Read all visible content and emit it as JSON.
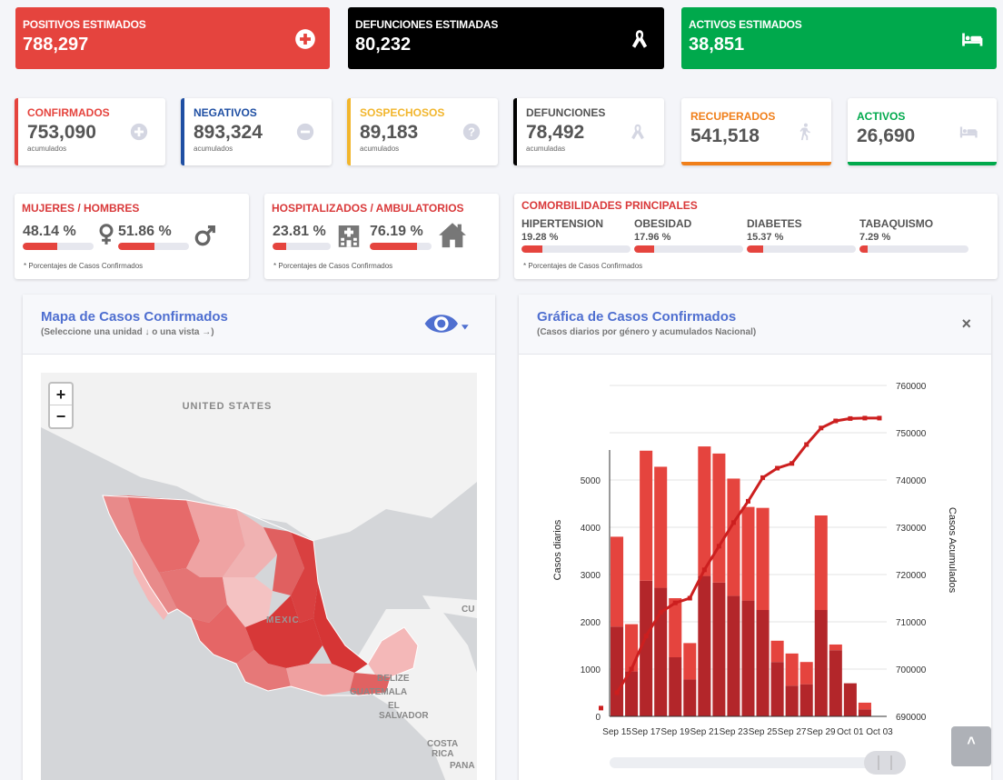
{
  "estimated": [
    {
      "label": "POSITIVOS ESTIMADOS",
      "value": "788,297",
      "color": "#e5443e",
      "icon": "plus-circle-icon"
    },
    {
      "label": "DEFUNCIONES ESTIMADAS",
      "value": "80,232",
      "color": "#000000",
      "icon": "ribbon-icon"
    },
    {
      "label": "ACTIVOS ESTIMADOS",
      "value": "38,851",
      "color": "#00a94c",
      "icon": "bed-icon"
    }
  ],
  "stats": [
    {
      "label": "CONFIRMADOS",
      "value": "753,090",
      "sub": "acumulados",
      "color": "#e5443e",
      "icon": "plus-circle-icon"
    },
    {
      "label": "NEGATIVOS",
      "value": "893,324",
      "sub": "acumulados",
      "color": "#1f4fa3",
      "icon": "minus-circle-icon"
    },
    {
      "label": "SOSPECHOSOS",
      "value": "89,183",
      "sub": "acumulados",
      "color": "#f2b62d",
      "icon": "question-circle-icon"
    },
    {
      "label": "DEFUNCIONES",
      "value": "78,492",
      "sub": "acumuladas",
      "color": "#000000",
      "icon": "ribbon-icon"
    },
    {
      "label": "RECUPERADOS",
      "value": "541,518",
      "sub": "",
      "color": "#f07f1a",
      "icon": "walking-icon"
    },
    {
      "label": "ACTIVOS",
      "value": "26,690",
      "sub": "",
      "color": "#00a94c",
      "icon": "bed-icon"
    }
  ],
  "gender": {
    "label": "MUJERES / HOMBRES",
    "women": "48.14 %",
    "men": "51.86 %",
    "women_frac": 0.4814,
    "men_frac": 0.5186,
    "note": "* Porcentajes de Casos Confirmados"
  },
  "hospital": {
    "label": "HOSPITALIZADOS / AMBULATORIOS",
    "hosp": "23.81 %",
    "amb": "76.19 %",
    "hosp_frac": 0.2381,
    "amb_frac": 0.7619,
    "note": "* Porcentajes de Casos Confirmados"
  },
  "comorb": {
    "label": "COMORBILIDADES PRINCIPALES",
    "items": [
      {
        "name": "HIPERTENSION",
        "pct": "19.28 %",
        "frac": 0.1928
      },
      {
        "name": "OBESIDAD",
        "pct": "17.96 %",
        "frac": 0.1796
      },
      {
        "name": "DIABETES",
        "pct": "15.37 %",
        "frac": 0.1537
      },
      {
        "name": "TABAQUISMO",
        "pct": "7.29 %",
        "frac": 0.0729
      }
    ],
    "note": "* Porcentajes de Casos Confirmados"
  },
  "map_panel": {
    "title": "Mapa de Casos Confirmados",
    "subtitle": "(Seleccione una unidad ↓ o una vista →)",
    "zoom_in": "+",
    "zoom_out": "−",
    "labels": [
      "UNITED STATES",
      "MEXIC",
      "BELIZE",
      "GUATEMALA",
      "EL",
      "SALVADOR",
      "COSTA",
      "RICA",
      "PANA",
      "CU"
    ]
  },
  "chart_panel": {
    "title": "Gráfica de Casos Confirmados",
    "subtitle": "(Casos diarios por género y acumulados Nacional)",
    "close": "×"
  },
  "chart_data": {
    "type": "bar",
    "categories": [
      "Sep 15",
      "Sep 16",
      "Sep 17",
      "Sep 18",
      "Sep 19",
      "Sep 20",
      "Sep 21",
      "Sep 22",
      "Sep 23",
      "Sep 24",
      "Sep 25",
      "Sep 26",
      "Sep 27",
      "Sep 28",
      "Sep 29",
      "Sep 30",
      "Oct 01",
      "Oct 02",
      "Oct 03"
    ],
    "x_tick_labels": [
      "Sep 15",
      "Sep 17",
      "Sep 19",
      "Sep 21",
      "Sep 23",
      "Sep 25",
      "Sep 27",
      "Sep 29",
      "Oct 01",
      "Oct 03"
    ],
    "series": [
      {
        "values": [
          1900,
          950,
          2870,
          2720,
          1250,
          780,
          2970,
          2830,
          2550,
          2450,
          2250,
          1150,
          650,
          680,
          2250,
          1400,
          700,
          150,
          0
        ],
        "color": "#b3262a"
      },
      {
        "values": [
          1900,
          1000,
          2750,
          2560,
          1250,
          770,
          2740,
          2730,
          2480,
          1980,
          2160,
          450,
          680,
          470,
          2000,
          120,
          0,
          140,
          0
        ],
        "color": "#e5443e"
      },
      {
        "values": [
          695000,
          700000,
          707000,
          712000,
          714000,
          715000,
          721000,
          726000,
          731000,
          735500,
          740500,
          742500,
          743500,
          747500,
          751000,
          752500,
          753000,
          753090,
          753090
        ],
        "color": "#cc1f1f",
        "axis": "right"
      }
    ],
    "extra_point": {
      "category_index": 0,
      "value": 690500
    },
    "ylabel": "Casos diarios",
    "y2label": "Casos Acumulados",
    "ylim": [
      0,
      5500
    ],
    "y2lim": [
      690000,
      760000
    ],
    "yticks": [
      0,
      1000,
      2000,
      3000,
      4000,
      5000
    ],
    "y2ticks": [
      690000,
      700000,
      710000,
      720000,
      730000,
      740000,
      750000,
      760000
    ],
    "grid": true
  },
  "scroll_top": "˄"
}
